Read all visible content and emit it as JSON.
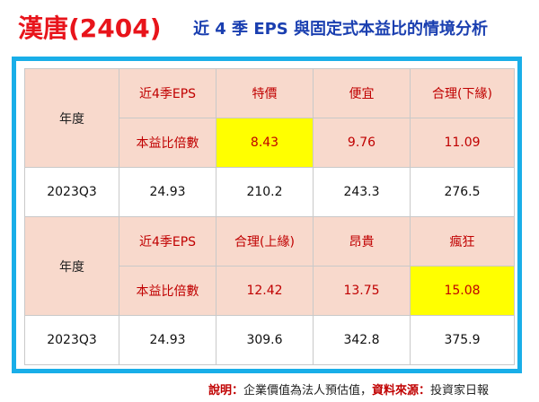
{
  "title": {
    "company": "漢唐(2404)",
    "description": "近 4 季 EPS 與固定式本益比的情境分析"
  },
  "table1": {
    "year_label": "年度",
    "eps_label": "近4季EPS",
    "pe_label": "本益比倍數",
    "scenario1": {
      "name": "特價",
      "pe": "8.43"
    },
    "scenario2": {
      "name": "便宜",
      "pe": "9.76"
    },
    "scenario3": {
      "name": "合理(下緣)",
      "pe": "11.09"
    },
    "row": {
      "year": "2023Q3",
      "eps": "24.93",
      "v1": "210.2",
      "v2": "243.3",
      "v3": "276.5"
    }
  },
  "table2": {
    "year_label": "年度",
    "eps_label": "近4季EPS",
    "pe_label": "本益比倍數",
    "scenario1": {
      "name": "合理(上緣)",
      "pe": "12.42"
    },
    "scenario2": {
      "name": "昂貴",
      "pe": "13.75"
    },
    "scenario3": {
      "name": "瘋狂",
      "pe": "15.08"
    },
    "row": {
      "year": "2023Q3",
      "eps": "24.93",
      "v1": "309.6",
      "v2": "342.8",
      "v3": "375.9"
    }
  },
  "footer": {
    "note_label": "說明：",
    "note_text": "企業價值為法人預估值，",
    "source_label": "資料來源：",
    "source_text": "投資家日報"
  },
  "colors": {
    "title_red": "#e8141b",
    "title_blue": "#1a3fb0",
    "frame_blue": "#19aee8",
    "header_pink": "#f8d9cc",
    "highlight_yellow": "#ffff00",
    "text_red": "#c00000"
  }
}
